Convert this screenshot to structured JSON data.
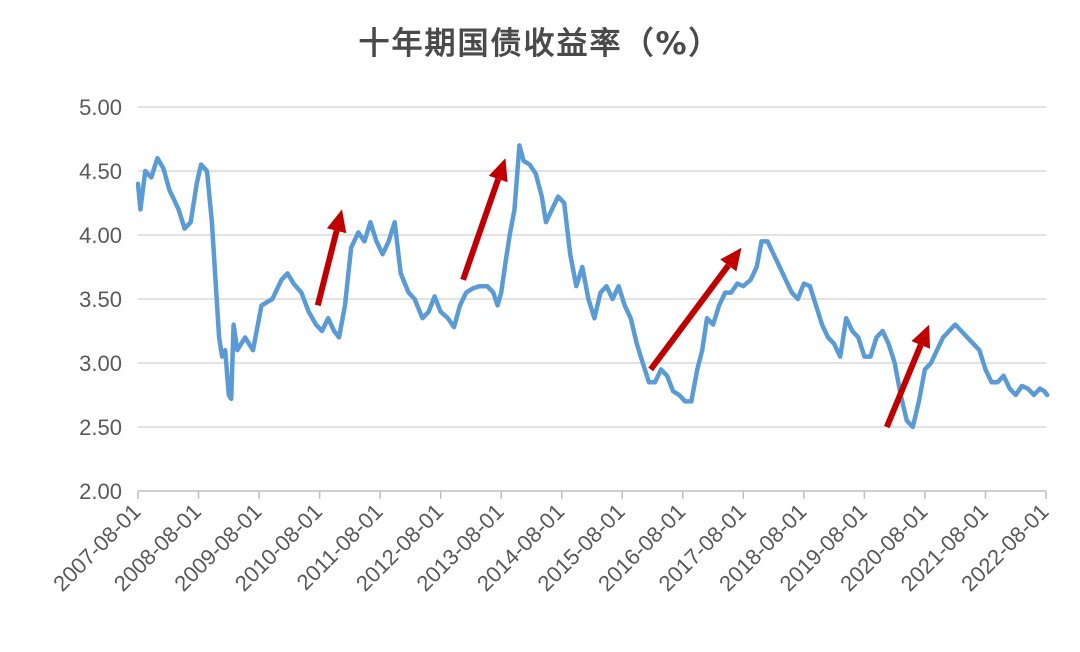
{
  "chart_data": {
    "type": "line",
    "title": "十年期国债收益率（%）",
    "xlabel": "",
    "ylabel": "",
    "ylim": [
      2.0,
      5.0
    ],
    "y_ticks": [
      "5.00",
      "4.50",
      "4.00",
      "3.50",
      "3.00",
      "2.50",
      "2.00"
    ],
    "x_ticks": [
      "2007-08-01",
      "2008-08-01",
      "2009-08-01",
      "2010-08-01",
      "2011-08-01",
      "2012-08-01",
      "2013-08-01",
      "2014-08-01",
      "2015-08-01",
      "2016-08-01",
      "2017-08-01",
      "2018-08-01",
      "2019-08-01",
      "2020-08-01",
      "2021-08-01",
      "2022-08-01"
    ],
    "grid": true,
    "series": [
      {
        "color": "#5b9bd5",
        "points": [
          [
            2007.58,
            4.4
          ],
          [
            2007.62,
            4.2
          ],
          [
            2007.7,
            4.5
          ],
          [
            2007.8,
            4.45
          ],
          [
            2007.9,
            4.6
          ],
          [
            2008.0,
            4.52
          ],
          [
            2008.1,
            4.35
          ],
          [
            2008.25,
            4.2
          ],
          [
            2008.35,
            4.05
          ],
          [
            2008.45,
            4.1
          ],
          [
            2008.55,
            4.4
          ],
          [
            2008.62,
            4.55
          ],
          [
            2008.72,
            4.5
          ],
          [
            2008.8,
            4.1
          ],
          [
            2008.86,
            3.65
          ],
          [
            2008.92,
            3.2
          ],
          [
            2008.97,
            3.05
          ],
          [
            2009.02,
            3.1
          ],
          [
            2009.08,
            2.75
          ],
          [
            2009.12,
            2.72
          ],
          [
            2009.16,
            3.3
          ],
          [
            2009.22,
            3.1
          ],
          [
            2009.35,
            3.2
          ],
          [
            2009.48,
            3.1
          ],
          [
            2009.62,
            3.45
          ],
          [
            2009.8,
            3.5
          ],
          [
            2009.95,
            3.65
          ],
          [
            2010.05,
            3.7
          ],
          [
            2010.15,
            3.62
          ],
          [
            2010.28,
            3.55
          ],
          [
            2010.4,
            3.4
          ],
          [
            2010.52,
            3.3
          ],
          [
            2010.62,
            3.25
          ],
          [
            2010.72,
            3.35
          ],
          [
            2010.82,
            3.25
          ],
          [
            2010.9,
            3.2
          ],
          [
            2011.0,
            3.45
          ],
          [
            2011.1,
            3.9
          ],
          [
            2011.22,
            4.02
          ],
          [
            2011.32,
            3.95
          ],
          [
            2011.42,
            4.1
          ],
          [
            2011.52,
            3.95
          ],
          [
            2011.62,
            3.85
          ],
          [
            2011.72,
            3.95
          ],
          [
            2011.82,
            4.1
          ],
          [
            2011.92,
            3.7
          ],
          [
            2012.05,
            3.55
          ],
          [
            2012.15,
            3.5
          ],
          [
            2012.28,
            3.35
          ],
          [
            2012.38,
            3.4
          ],
          [
            2012.48,
            3.52
          ],
          [
            2012.58,
            3.4
          ],
          [
            2012.7,
            3.35
          ],
          [
            2012.8,
            3.28
          ],
          [
            2012.9,
            3.45
          ],
          [
            2013.0,
            3.55
          ],
          [
            2013.1,
            3.58
          ],
          [
            2013.22,
            3.6
          ],
          [
            2013.35,
            3.6
          ],
          [
            2013.45,
            3.55
          ],
          [
            2013.52,
            3.45
          ],
          [
            2013.58,
            3.55
          ],
          [
            2013.65,
            3.78
          ],
          [
            2013.72,
            4.0
          ],
          [
            2013.8,
            4.2
          ],
          [
            2013.88,
            4.7
          ],
          [
            2013.95,
            4.58
          ],
          [
            2014.05,
            4.55
          ],
          [
            2014.15,
            4.48
          ],
          [
            2014.25,
            4.3
          ],
          [
            2014.32,
            4.1
          ],
          [
            2014.42,
            4.2
          ],
          [
            2014.52,
            4.3
          ],
          [
            2014.62,
            4.25
          ],
          [
            2014.72,
            3.85
          ],
          [
            2014.82,
            3.6
          ],
          [
            2014.92,
            3.75
          ],
          [
            2015.02,
            3.5
          ],
          [
            2015.12,
            3.35
          ],
          [
            2015.22,
            3.55
          ],
          [
            2015.32,
            3.6
          ],
          [
            2015.42,
            3.5
          ],
          [
            2015.52,
            3.6
          ],
          [
            2015.62,
            3.45
          ],
          [
            2015.72,
            3.35
          ],
          [
            2015.82,
            3.15
          ],
          [
            2015.92,
            3.0
          ],
          [
            2016.02,
            2.85
          ],
          [
            2016.12,
            2.85
          ],
          [
            2016.22,
            2.95
          ],
          [
            2016.32,
            2.9
          ],
          [
            2016.42,
            2.78
          ],
          [
            2016.52,
            2.75
          ],
          [
            2016.62,
            2.7
          ],
          [
            2016.72,
            2.7
          ],
          [
            2016.82,
            2.95
          ],
          [
            2016.9,
            3.1
          ],
          [
            2016.98,
            3.35
          ],
          [
            2017.08,
            3.3
          ],
          [
            2017.18,
            3.45
          ],
          [
            2017.28,
            3.55
          ],
          [
            2017.38,
            3.55
          ],
          [
            2017.48,
            3.62
          ],
          [
            2017.58,
            3.6
          ],
          [
            2017.7,
            3.65
          ],
          [
            2017.8,
            3.75
          ],
          [
            2017.88,
            3.95
          ],
          [
            2017.98,
            3.95
          ],
          [
            2018.08,
            3.85
          ],
          [
            2018.18,
            3.75
          ],
          [
            2018.28,
            3.65
          ],
          [
            2018.38,
            3.55
          ],
          [
            2018.48,
            3.5
          ],
          [
            2018.58,
            3.62
          ],
          [
            2018.68,
            3.6
          ],
          [
            2018.78,
            3.45
          ],
          [
            2018.88,
            3.3
          ],
          [
            2018.98,
            3.2
          ],
          [
            2019.08,
            3.15
          ],
          [
            2019.18,
            3.05
          ],
          [
            2019.28,
            3.35
          ],
          [
            2019.38,
            3.25
          ],
          [
            2019.48,
            3.2
          ],
          [
            2019.58,
            3.05
          ],
          [
            2019.68,
            3.05
          ],
          [
            2019.78,
            3.2
          ],
          [
            2019.88,
            3.25
          ],
          [
            2019.98,
            3.15
          ],
          [
            2020.08,
            3.0
          ],
          [
            2020.18,
            2.75
          ],
          [
            2020.28,
            2.55
          ],
          [
            2020.38,
            2.5
          ],
          [
            2020.48,
            2.7
          ],
          [
            2020.58,
            2.95
          ],
          [
            2020.68,
            3.0
          ],
          [
            2020.78,
            3.1
          ],
          [
            2020.88,
            3.2
          ],
          [
            2020.98,
            3.25
          ],
          [
            2021.08,
            3.3
          ],
          [
            2021.18,
            3.25
          ],
          [
            2021.28,
            3.2
          ],
          [
            2021.38,
            3.15
          ],
          [
            2021.48,
            3.1
          ],
          [
            2021.58,
            2.95
          ],
          [
            2021.68,
            2.85
          ],
          [
            2021.78,
            2.85
          ],
          [
            2021.88,
            2.9
          ],
          [
            2021.98,
            2.8
          ],
          [
            2022.08,
            2.75
          ],
          [
            2022.18,
            2.82
          ],
          [
            2022.28,
            2.8
          ],
          [
            2022.38,
            2.75
          ],
          [
            2022.48,
            2.8
          ],
          [
            2022.55,
            2.78
          ],
          [
            2022.6,
            2.75
          ]
        ]
      }
    ],
    "annotations": [
      {
        "type": "arrow",
        "color": "#c00000",
        "from": [
          2010.55,
          3.45
        ],
        "to": [
          2010.95,
          4.2
        ]
      },
      {
        "type": "arrow",
        "color": "#c00000",
        "from": [
          2012.95,
          3.65
        ],
        "to": [
          2013.65,
          4.6
        ]
      },
      {
        "type": "arrow",
        "color": "#c00000",
        "from": [
          2016.05,
          2.95
        ],
        "to": [
          2017.55,
          3.9
        ]
      },
      {
        "type": "arrow",
        "color": "#c00000",
        "from": [
          2019.95,
          2.5
        ],
        "to": [
          2020.65,
          3.3
        ]
      }
    ]
  }
}
